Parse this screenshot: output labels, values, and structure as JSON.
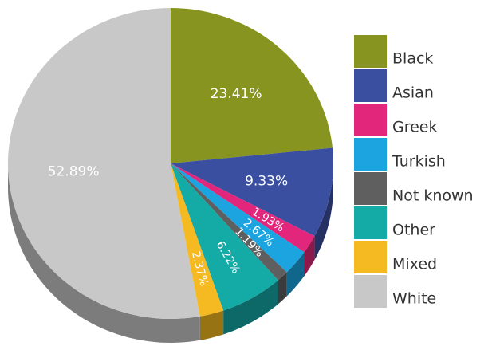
{
  "chart_data": {
    "type": "pie",
    "categories": [
      "Black",
      "Asian",
      "Greek",
      "Turkish",
      "Not known",
      "Other",
      "Mixed",
      "White"
    ],
    "values": [
      23.41,
      9.33,
      1.93,
      2.67,
      1.19,
      6.22,
      2.37,
      52.89
    ],
    "value_labels": [
      "23.41%",
      "9.33%",
      "1.93%",
      "2.67%",
      "1.19%",
      "6.22%",
      "2.37%",
      "52.89%"
    ],
    "colors": [
      "#879520",
      "#3b4fa0",
      "#e2267b",
      "#1ba4e0",
      "#5f5f5f",
      "#14aaa6",
      "#f5b921",
      "#c8c8c8"
    ],
    "legend": "right"
  }
}
